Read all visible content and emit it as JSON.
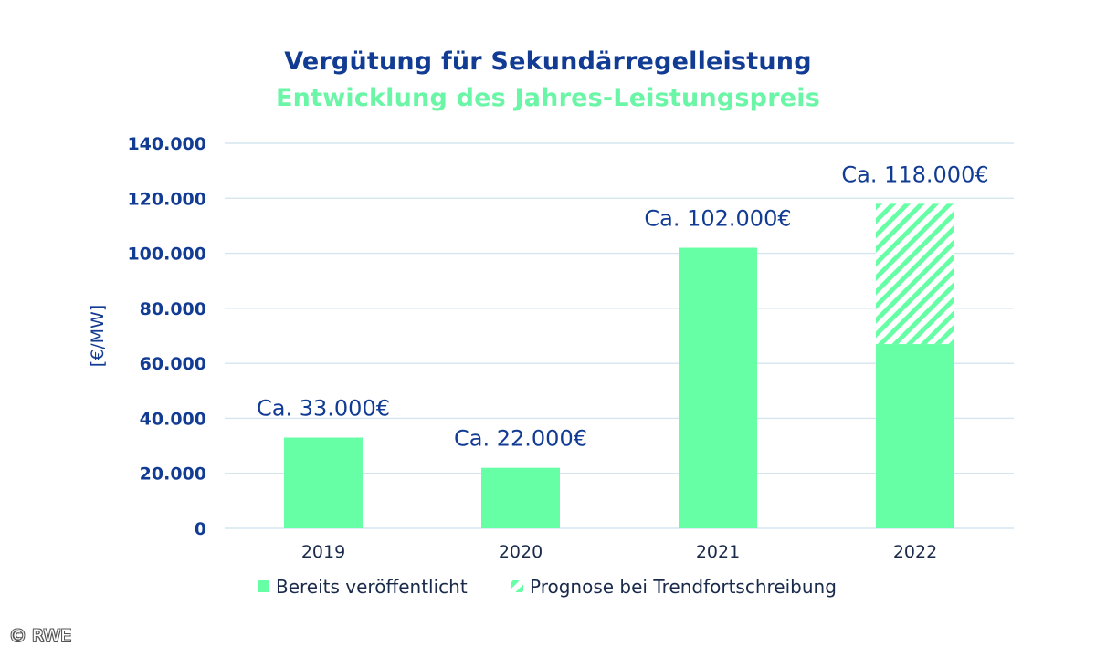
{
  "chart_data": {
    "type": "bar",
    "title": "Vergütung für Sekundärregelleistung",
    "subtitle": "Entwicklung des Jahres-Leistungspreis",
    "ylabel": "[€/MW]",
    "xlabel": "",
    "categories": [
      "2019",
      "2020",
      "2021",
      "2022"
    ],
    "series": [
      {
        "name": "Bereits veröffentlicht",
        "values": [
          33000,
          22000,
          102000,
          67000
        ],
        "color": "#66ffa6",
        "pattern": "solid"
      },
      {
        "name": "Prognose bei Trendfortschreibung",
        "values": [
          0,
          0,
          0,
          51000
        ],
        "color": "#66ffa6",
        "pattern": "hatched"
      }
    ],
    "data_labels": [
      "Ca. 33.000€",
      "Ca. 22.000€",
      "Ca. 102.000€",
      "Ca. 118.000€"
    ],
    "ylim": [
      0,
      140000
    ],
    "yticks": [
      0,
      20000,
      40000,
      60000,
      80000,
      100000,
      120000,
      140000
    ],
    "ytick_labels": [
      "0",
      "20.000",
      "40.000",
      "60.000",
      "80.000",
      "100.000",
      "120.000",
      "140.000"
    ],
    "grid": true,
    "legend_position": "bottom",
    "stacked": true
  },
  "colors": {
    "title": "#123c93",
    "subtitle": "#6bf5a6",
    "axis_text": "#123c93",
    "bar": "#66ffa6",
    "grid": "#d5e6ef"
  },
  "copyright": "© RWE"
}
